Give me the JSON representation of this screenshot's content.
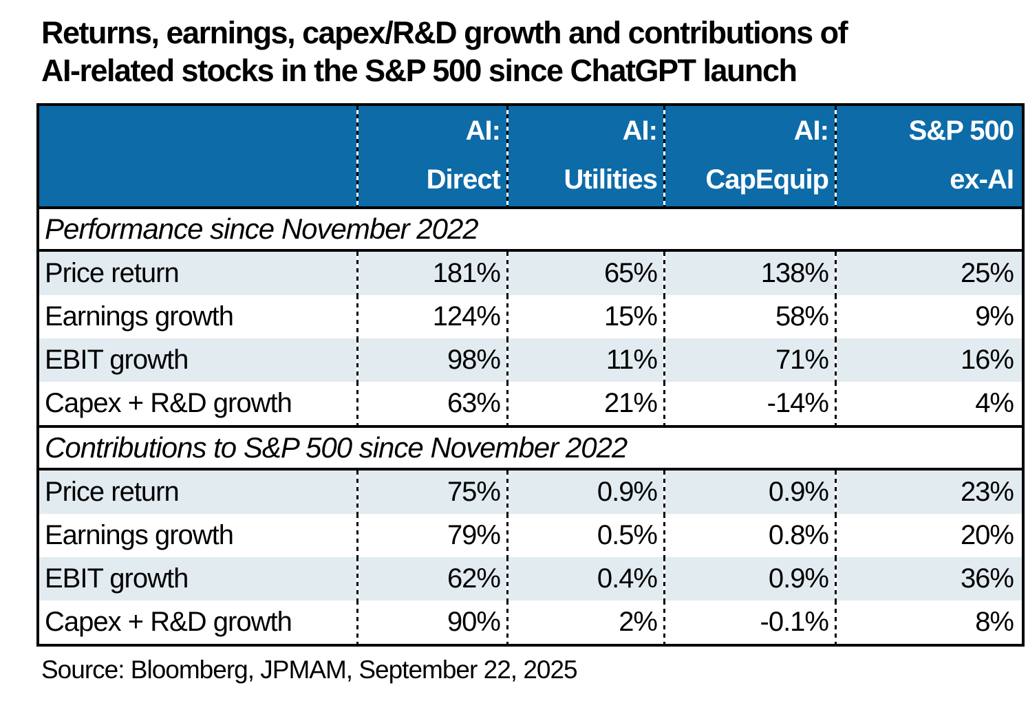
{
  "title": {
    "line1": "Returns, earnings, capex/R&D growth and contributions of",
    "line2": "AI-related stocks in the S&P 500 since ChatGPT launch"
  },
  "table": {
    "header": {
      "columns": [
        {
          "line1": "AI:",
          "line2": "Direct"
        },
        {
          "line1": "AI:",
          "line2": "Utilities"
        },
        {
          "line1": "AI:",
          "line2": "CapEquip"
        },
        {
          "line1": "S&P 500",
          "line2": "ex-AI"
        }
      ]
    },
    "sections": [
      {
        "heading": "Performance since November 2022",
        "rows": [
          {
            "label": "Price return",
            "values": [
              "181%",
              "65%",
              "138%",
              "25%"
            ]
          },
          {
            "label": "Earnings growth",
            "values": [
              "124%",
              "15%",
              "58%",
              "9%"
            ]
          },
          {
            "label": "EBIT growth",
            "values": [
              "98%",
              "11%",
              "71%",
              "16%"
            ]
          },
          {
            "label": "Capex + R&D growth",
            "values": [
              "63%",
              "21%",
              "-14%",
              "4%"
            ]
          }
        ]
      },
      {
        "heading": "Contributions to S&P 500 since November 2022",
        "rows": [
          {
            "label": "Price return",
            "values": [
              "75%",
              "0.9%",
              "0.9%",
              "23%"
            ]
          },
          {
            "label": "Earnings growth",
            "values": [
              "79%",
              "0.5%",
              "0.8%",
              "20%"
            ]
          },
          {
            "label": "EBIT growth",
            "values": [
              "62%",
              "0.4%",
              "0.9%",
              "36%"
            ]
          },
          {
            "label": "Capex + R&D growth",
            "values": [
              "90%",
              "2%",
              "-0.1%",
              "8%"
            ]
          }
        ]
      }
    ]
  },
  "source": "Source: Bloomberg, JPMAM, September 22, 2025",
  "colors": {
    "header_blue": "#0d6ba8",
    "row_light": "#e2ebf0",
    "row_white": "#ffffff",
    "border_black": "#000000",
    "header_text": "#ffffff"
  },
  "chart_data": {
    "type": "table",
    "title": "Returns, earnings, capex/R&D growth and contributions of AI-related stocks in the S&P 500 since ChatGPT launch",
    "columns": [
      "AI: Direct",
      "AI: Utilities",
      "AI: CapEquip",
      "S&P 500 ex-AI"
    ],
    "sections": [
      {
        "heading": "Performance since November 2022",
        "unit": "percent",
        "rows": [
          {
            "label": "Price return",
            "values": [
              181,
              65,
              138,
              25
            ]
          },
          {
            "label": "Earnings growth",
            "values": [
              124,
              15,
              58,
              9
            ]
          },
          {
            "label": "EBIT growth",
            "values": [
              98,
              11,
              71,
              16
            ]
          },
          {
            "label": "Capex + R&D growth",
            "values": [
              63,
              21,
              -14,
              4
            ]
          }
        ]
      },
      {
        "heading": "Contributions to S&P 500 since November 2022",
        "unit": "percent",
        "rows": [
          {
            "label": "Price return",
            "values": [
              75,
              0.9,
              0.9,
              23
            ]
          },
          {
            "label": "Earnings growth",
            "values": [
              79,
              0.5,
              0.8,
              20
            ]
          },
          {
            "label": "EBIT growth",
            "values": [
              62,
              0.4,
              0.9,
              36
            ]
          },
          {
            "label": "Capex + R&D growth",
            "values": [
              90,
              2,
              -0.1,
              8
            ]
          }
        ]
      }
    ],
    "source": "Source: Bloomberg, JPMAM, September 22, 2025"
  }
}
